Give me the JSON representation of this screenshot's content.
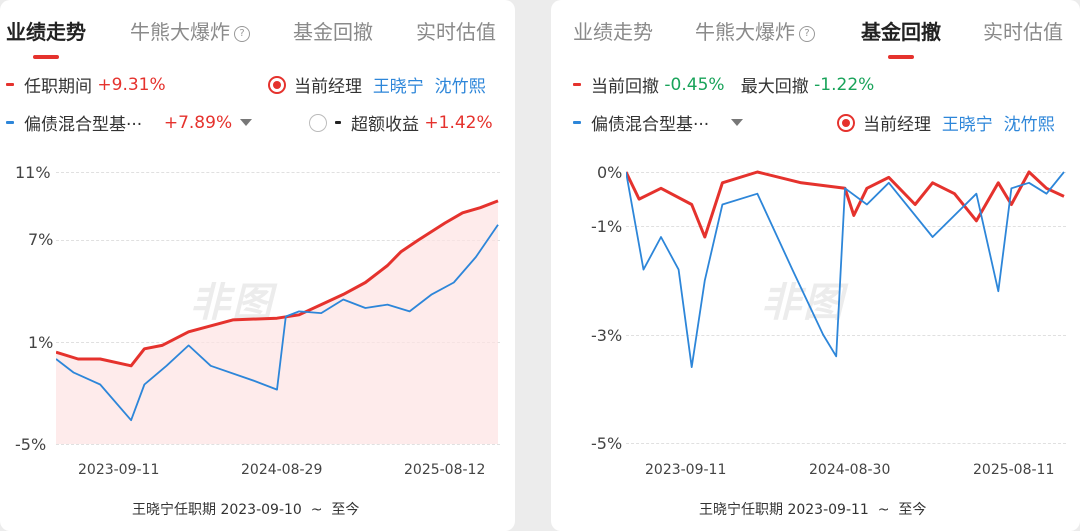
{
  "left": {
    "tabs": [
      "业绩走势",
      "牛熊大爆炸",
      "基金回撤",
      "实时估值"
    ],
    "active_tab": 0,
    "legend": {
      "period_label": "任职期间",
      "period_value": "+9.31%",
      "manager_label": "当前经理",
      "managers": [
        "王晓宁",
        "沈竹熙"
      ],
      "benchmark_label": "偏债混合型基···",
      "benchmark_value": "+7.89%",
      "excess_label": "超额收益",
      "excess_value": "+1.42%"
    },
    "y_ticks": [
      "11%",
      "7%",
      "1%",
      "-5%"
    ],
    "x_ticks": [
      "2023-09-11",
      "2024-08-29",
      "2025-08-12"
    ],
    "watermark": "非图",
    "footer": {
      "text": "王晓宁任职期 2023-09-10",
      "sep": "~",
      "end": "至今"
    }
  },
  "right": {
    "tabs": [
      "业绩走势",
      "牛熊大爆炸",
      "基金回撤",
      "实时估值"
    ],
    "active_tab": 2,
    "legend": {
      "current_label": "当前回撤",
      "current_value": "-0.45%",
      "max_label": "最大回撤",
      "max_value": "-1.22%",
      "benchmark_label": "偏债混合型基···",
      "manager_label": "当前经理",
      "managers": [
        "王晓宁",
        "沈竹熙"
      ]
    },
    "y_ticks": [
      "0%",
      "-1%",
      "-3%",
      "-5%"
    ],
    "x_ticks": [
      "2023-09-11",
      "2024-08-30",
      "2025-08-11"
    ],
    "watermark": "非图",
    "footer": {
      "text": "王晓宁任职期 2023-09-11",
      "sep": "~",
      "end": "至今"
    }
  },
  "colors": {
    "fund": "#e5322d",
    "benchmark": "#2d86d9",
    "fill": "#fde3e3"
  },
  "chart_data": [
    {
      "type": "line",
      "title": "业绩走势",
      "x": [
        "2023-09-11",
        "2024-08-29",
        "2025-08-12"
      ],
      "ylim": [
        -5,
        11
      ],
      "series": [
        {
          "name": "任职期间",
          "x": [
            0,
            0.05,
            0.1,
            0.17,
            0.2,
            0.24,
            0.3,
            0.4,
            0.5,
            0.55,
            0.6,
            0.65,
            0.7,
            0.75,
            0.78,
            0.82,
            0.88,
            0.92,
            0.96,
            1.0
          ],
          "values": [
            0.4,
            0.0,
            0.0,
            -0.4,
            0.6,
            0.8,
            1.6,
            2.3,
            2.4,
            2.6,
            3.2,
            3.8,
            4.5,
            5.5,
            6.3,
            7.0,
            8.0,
            8.6,
            8.9,
            9.3
          ]
        },
        {
          "name": "偏债混合型基···",
          "x": [
            0,
            0.04,
            0.1,
            0.17,
            0.2,
            0.25,
            0.3,
            0.35,
            0.45,
            0.5,
            0.52,
            0.55,
            0.6,
            0.65,
            0.7,
            0.75,
            0.8,
            0.85,
            0.9,
            0.95,
            1.0
          ],
          "values": [
            0.0,
            -0.8,
            -1.5,
            -3.6,
            -1.5,
            -0.4,
            0.8,
            -0.4,
            -1.3,
            -1.8,
            2.5,
            2.8,
            2.7,
            3.5,
            3.0,
            3.2,
            2.8,
            3.8,
            4.5,
            6.0,
            7.9
          ]
        }
      ]
    },
    {
      "type": "line",
      "title": "基金回撤",
      "x": [
        "2023-09-11",
        "2024-08-30",
        "2025-08-11"
      ],
      "ylim": [
        -5,
        0
      ],
      "series": [
        {
          "name": "当前回撤",
          "x": [
            0,
            0.03,
            0.08,
            0.15,
            0.18,
            0.22,
            0.3,
            0.4,
            0.5,
            0.52,
            0.55,
            0.6,
            0.66,
            0.7,
            0.75,
            0.8,
            0.85,
            0.88,
            0.92,
            0.96,
            1.0
          ],
          "values": [
            0,
            -0.5,
            -0.3,
            -0.6,
            -1.2,
            -0.2,
            0,
            -0.2,
            -0.3,
            -0.8,
            -0.3,
            -0.1,
            -0.6,
            -0.2,
            -0.4,
            -0.9,
            -0.2,
            -0.6,
            0,
            -0.3,
            -0.45
          ]
        },
        {
          "name": "偏债混合型基···",
          "x": [
            0,
            0.04,
            0.08,
            0.12,
            0.15,
            0.18,
            0.22,
            0.3,
            0.38,
            0.45,
            0.48,
            0.5,
            0.55,
            0.6,
            0.7,
            0.8,
            0.85,
            0.88,
            0.92,
            0.96,
            1.0
          ],
          "values": [
            0,
            -1.8,
            -1.2,
            -1.8,
            -3.6,
            -2.0,
            -0.6,
            -0.4,
            -1.8,
            -3.0,
            -3.4,
            -0.3,
            -0.6,
            -0.2,
            -1.2,
            -0.4,
            -2.2,
            -0.3,
            -0.2,
            -0.4,
            0
          ]
        }
      ]
    }
  ]
}
